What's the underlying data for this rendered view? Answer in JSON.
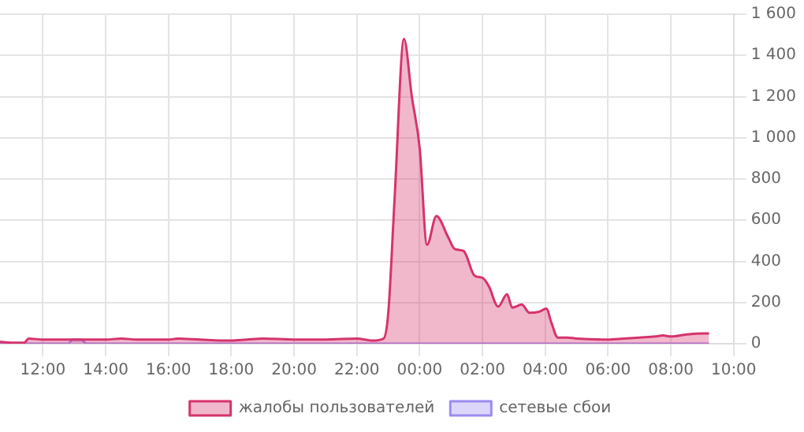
{
  "chart_data": {
    "type": "area",
    "xlim": [
      "--01-01T10:38",
      "--01-02T10:00"
    ],
    "xticks": [
      {
        "value": "--01-01T12:00",
        "label": "12:00"
      },
      {
        "value": "--01-01T14:00",
        "label": "14:00"
      },
      {
        "value": "--01-01T16:00",
        "label": "16:00"
      },
      {
        "value": "--01-01T18:00",
        "label": "18:00"
      },
      {
        "value": "--01-01T20:00",
        "label": "20:00"
      },
      {
        "value": "--01-01T22:00",
        "label": "22:00"
      },
      {
        "value": "--01-02T00:00",
        "label": "00:00"
      },
      {
        "value": "--01-02T02:00",
        "label": "02:00"
      },
      {
        "value": "--01-02T04:00",
        "label": "04:00"
      },
      {
        "value": "--01-02T06:00",
        "label": "06:00"
      },
      {
        "value": "--01-02T08:00",
        "label": "08:00"
      },
      {
        "value": "--01-02T10:00",
        "label": "10:00"
      }
    ],
    "ylim": [
      0,
      1600
    ],
    "yticks": [
      0,
      200,
      400,
      600,
      800,
      {
        "value": 1000,
        "label": "1 000"
      },
      {
        "value": 1200,
        "label": "1 200"
      },
      {
        "value": 1400,
        "label": "1 400"
      },
      {
        "value": 1600,
        "label": "1 600"
      }
    ],
    "grid": true,
    "legend": "bottom",
    "marker": "none",
    "series": [
      {
        "name": "жалобы пользователей",
        "color": "#d6336c",
        "x": [
          "--01-01T10:38",
          "--01-01T11:00",
          "--01-01T11:24",
          "--01-01T11:33",
          "--01-01T12:00",
          "--01-01T13:00",
          "--01-01T14:00",
          "--01-01T14:30",
          "--01-01T15:00",
          "--01-01T16:00",
          "--01-01T16:18",
          "--01-01T17:00",
          "--01-01T18:00",
          "--01-01T18:30",
          "--01-01T19:00",
          "--01-01T20:00",
          "--01-01T21:00",
          "--01-01T22:00",
          "--01-01T22:30",
          "--01-01T22:51",
          "--01-01T23:00",
          "--01-01T23:12",
          "--01-01T23:30",
          "--01-01T23:45",
          "--01-02T00:00",
          "--01-02T00:14",
          "--01-02T00:32",
          "--01-02T00:54",
          "--01-02T01:07",
          "--01-02T01:24",
          "--01-02T01:45",
          "--01-02T02:00",
          "--01-02T02:12",
          "--01-02T02:30",
          "--01-02T02:47",
          "--01-02T02:57",
          "--01-02T03:15",
          "--01-02T03:30",
          "--01-02T03:48",
          "--01-02T04:02",
          "--01-02T04:12",
          "--01-02T04:24",
          "--01-02T04:42",
          "--01-02T05:00",
          "--01-02T06:00",
          "--01-02T06:30",
          "--01-02T07:00",
          "--01-02T07:30",
          "--01-02T07:45",
          "--01-02T08:00",
          "--01-02T08:30",
          "--01-02T09:00",
          "--01-02T09:13"
        ],
        "values": [
          10,
          5,
          5,
          25,
          20,
          20,
          20,
          25,
          20,
          20,
          25,
          20,
          15,
          20,
          25,
          20,
          20,
          25,
          15,
          25,
          150,
          700,
          1480,
          1200,
          950,
          480,
          620,
          520,
          460,
          450,
          330,
          320,
          280,
          180,
          240,
          175,
          190,
          150,
          155,
          170,
          100,
          30,
          30,
          25,
          20,
          25,
          30,
          35,
          40,
          35,
          45,
          50,
          50
        ]
      },
      {
        "name": "сетевые сбои",
        "color": "#9b8cf0",
        "x": [
          "--01-01T10:38",
          "--01-01T12:48",
          "--01-01T12:57",
          "--01-01T13:12",
          "--01-01T13:24",
          "--01-01T14:00",
          "--01-01T20:00",
          "--01-02T02:00",
          "--01-02T09:13"
        ],
        "values": [
          0,
          0,
          20,
          20,
          0,
          0,
          0,
          0,
          0
        ]
      }
    ]
  }
}
